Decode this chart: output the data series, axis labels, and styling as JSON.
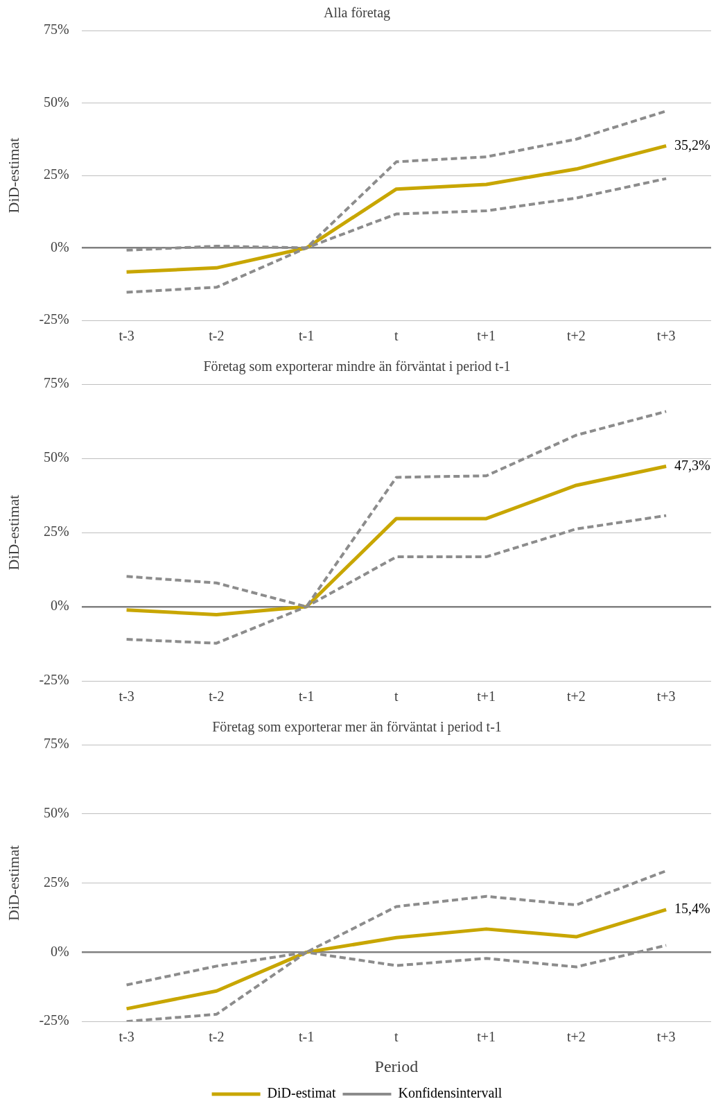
{
  "chart_data": [
    {
      "type": "line",
      "title": "Alla företag",
      "ylabel": "DiD-estimat",
      "categories": [
        "t-3",
        "t-2",
        "t-1",
        "t",
        "t+1",
        "t+2",
        "t+3"
      ],
      "ylim": [
        -25,
        75
      ],
      "yticks": [
        {
          "value": -25,
          "label": "-25%"
        },
        {
          "value": 0,
          "label": "0%"
        },
        {
          "value": 25,
          "label": "25%"
        },
        {
          "value": 50,
          "label": "50%"
        },
        {
          "value": 75,
          "label": "75%"
        }
      ],
      "grid": "y",
      "marker": "none",
      "series": [
        {
          "color": "#8c8c8c",
          "line_style": "dashed",
          "values": [
            -0.8,
            0.6,
            0,
            29.7,
            31.4,
            37.5,
            47.2
          ]
        },
        {
          "color": "#8c8c8c",
          "line_style": "dashed",
          "values": [
            -15.3,
            -13.6,
            0,
            11.7,
            12.8,
            17.2,
            23.9
          ]
        },
        {
          "color": "#c8a600",
          "line_style": "solid",
          "values": [
            -8.3,
            -6.9,
            0,
            20.3,
            21.9,
            27.2,
            35.2
          ],
          "value_labels": [
            null,
            null,
            null,
            null,
            null,
            null,
            "35,2%"
          ]
        }
      ]
    },
    {
      "type": "line",
      "title": "Företag som exporterar mindre än förväntat i period t-1",
      "ylabel": "DiD-estimat",
      "categories": [
        "t-3",
        "t-2",
        "t-1",
        "t",
        "t+1",
        "t+2",
        "t+3"
      ],
      "ylim": [
        -25,
        75
      ],
      "yticks": [
        {
          "value": -25,
          "label": "-25%"
        },
        {
          "value": 0,
          "label": "0%"
        },
        {
          "value": 25,
          "label": "25%"
        },
        {
          "value": 50,
          "label": "50%"
        },
        {
          "value": 75,
          "label": "75%"
        }
      ],
      "grid": "y",
      "marker": "none",
      "series": [
        {
          "color": "#8c8c8c",
          "line_style": "dashed",
          "values": [
            10.2,
            8.0,
            0,
            43.6,
            44.1,
            57.8,
            65.8
          ]
        },
        {
          "color": "#8c8c8c",
          "line_style": "dashed",
          "values": [
            -11.0,
            -12.3,
            0,
            16.8,
            16.8,
            26.2,
            30.7
          ]
        },
        {
          "color": "#c8a600",
          "line_style": "solid",
          "values": [
            -1.1,
            -2.7,
            0,
            29.7,
            29.7,
            40.9,
            47.3
          ],
          "value_labels": [
            null,
            null,
            null,
            null,
            null,
            null,
            "47,3%"
          ]
        }
      ]
    },
    {
      "type": "line",
      "title": "Företag som exporterar mer än förväntat i period t-1",
      "xlabel": "Period",
      "ylabel": "DiD-estimat",
      "categories": [
        "t-3",
        "t-2",
        "t-1",
        "t",
        "t+1",
        "t+2",
        "t+3"
      ],
      "ylim": [
        -25,
        75
      ],
      "yticks": [
        {
          "value": -25,
          "label": "-25%"
        },
        {
          "value": 0,
          "label": "0%"
        },
        {
          "value": 25,
          "label": "25%"
        },
        {
          "value": 50,
          "label": "50%"
        },
        {
          "value": 75,
          "label": "75%"
        }
      ],
      "grid": "y",
      "marker": "none",
      "legend": "bottom",
      "series": [
        {
          "name": "Konfidensintervall",
          "color": "#8c8c8c",
          "line_style": "dashed",
          "values": [
            -11.8,
            -5.0,
            0,
            16.5,
            20.2,
            17.1,
            29.4
          ]
        },
        {
          "color": "#8c8c8c",
          "line_style": "dashed",
          "values": [
            -25,
            -22.4,
            0,
            -4.8,
            -2.2,
            -5.3,
            2.5
          ]
        },
        {
          "name": "DiD-estimat",
          "color": "#c8a600",
          "line_style": "solid",
          "values": [
            -20.4,
            -14.0,
            0,
            5.3,
            8.4,
            5.6,
            15.4
          ],
          "value_labels": [
            null,
            null,
            null,
            null,
            null,
            null,
            "15,4%"
          ]
        }
      ]
    }
  ]
}
